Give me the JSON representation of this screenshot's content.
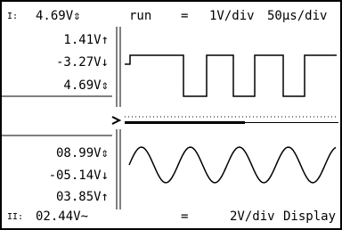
{
  "header": {
    "channel": "I:",
    "reading": "4.69V⇕",
    "mode": "run",
    "coupling": "=",
    "volts_per_div": "1V/div",
    "time_per_div": "50µs/div"
  },
  "channel1": {
    "readings": [
      "1.41V↑",
      "-3.27V↓",
      "4.69V⇕"
    ]
  },
  "channel2": {
    "readings": [
      "08.99V⇕",
      "-05.14V↓",
      "03.85V↑"
    ]
  },
  "footer": {
    "channel": "II:",
    "reading": "02.44V~",
    "coupling": "=",
    "volts_per_div": "2V/div",
    "button": "Display"
  }
}
